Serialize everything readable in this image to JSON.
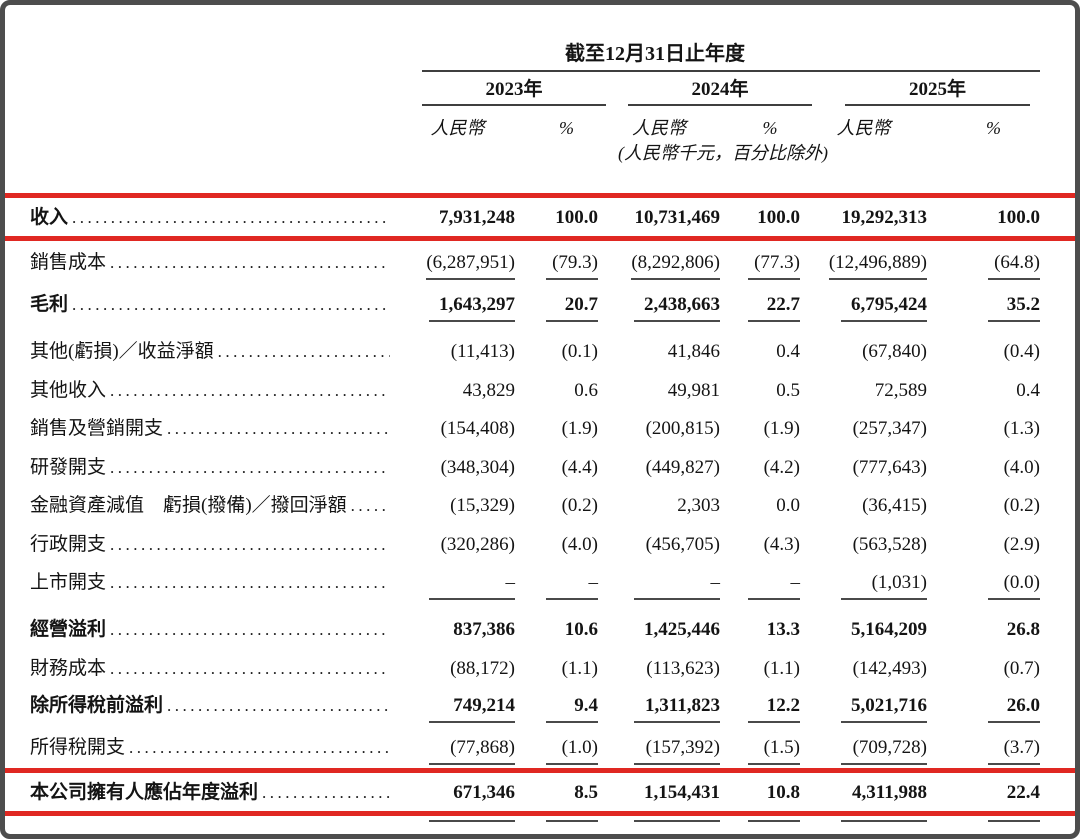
{
  "table": {
    "period_header": "截至12月31日止年度",
    "unit_note": "(人民幣千元，百分比除外)",
    "years": [
      "2023年",
      "2024年",
      "2025年"
    ],
    "col_headers": {
      "currency": "人民幣",
      "percent": "%"
    },
    "colors": {
      "highlight": "#e02822",
      "rule": "#3f3f3f",
      "page_border": "#4d4d4d",
      "ink": "#141414"
    },
    "rows": [
      {
        "key": "revenue",
        "label": "收入",
        "emphasis": true,
        "highlight": true,
        "values": [
          "7,931,248",
          "100.0",
          "10,731,469",
          "100.0",
          "19,292,313",
          "100.0"
        ]
      },
      {
        "key": "cost-of-sales",
        "label": "銷售成本",
        "rule_below": true,
        "values": [
          "(6,287,951)",
          "(79.3)",
          "(8,292,806)",
          "(77.3)",
          "(12,496,889)",
          "(64.8)"
        ]
      },
      {
        "key": "gross-profit",
        "label": "毛利",
        "emphasis": true,
        "rule_below": true,
        "values": [
          "1,643,297",
          "20.7",
          "2,438,663",
          "22.7",
          "6,795,424",
          "35.2"
        ]
      },
      {
        "key": "other-losses-gains-net",
        "label": "其他(虧損)／收益淨額",
        "values": [
          "(11,413)",
          "(0.1)",
          "41,846",
          "0.4",
          "(67,840)",
          "(0.4)"
        ]
      },
      {
        "key": "other-income",
        "label": "其他收入",
        "values": [
          "43,829",
          "0.6",
          "49,981",
          "0.5",
          "72,589",
          "0.4"
        ]
      },
      {
        "key": "selling-marketing-expenses",
        "label": "銷售及營銷開支",
        "values": [
          "(154,408)",
          "(1.9)",
          "(200,815)",
          "(1.9)",
          "(257,347)",
          "(1.3)"
        ]
      },
      {
        "key": "rd-expenses",
        "label": "研發開支",
        "values": [
          "(348,304)",
          "(4.4)",
          "(449,827)",
          "(4.2)",
          "(777,643)",
          "(4.0)"
        ]
      },
      {
        "key": "impairment-financial-assets",
        "label": "金融資產減值　虧損(撥備)／撥回淨額",
        "values": [
          "(15,329)",
          "(0.2)",
          "2,303",
          "0.0",
          "(36,415)",
          "(0.2)"
        ]
      },
      {
        "key": "administrative-expenses",
        "label": "行政開支",
        "values": [
          "(320,286)",
          "(4.0)",
          "(456,705)",
          "(4.3)",
          "(563,528)",
          "(2.9)"
        ]
      },
      {
        "key": "listing-expenses",
        "label": "上市開支",
        "rule_below": true,
        "values": [
          "–",
          "–",
          "–",
          "–",
          "(1,031)",
          "(0.0)"
        ]
      },
      {
        "key": "operating-profit",
        "label": "經營溢利",
        "emphasis": true,
        "values": [
          "837,386",
          "10.6",
          "1,425,446",
          "13.3",
          "5,164,209",
          "26.8"
        ]
      },
      {
        "key": "finance-costs",
        "label": "財務成本",
        "values": [
          "(88,172)",
          "(1.1)",
          "(113,623)",
          "(1.1)",
          "(142,493)",
          "(0.7)"
        ]
      },
      {
        "key": "profit-before-income-tax",
        "label": "除所得稅前溢利",
        "emphasis": true,
        "rule_below": true,
        "values": [
          "749,214",
          "9.4",
          "1,311,823",
          "12.2",
          "5,021,716",
          "26.0"
        ]
      },
      {
        "key": "income-tax-expense",
        "label": "所得稅開支",
        "rule_below": true,
        "values": [
          "(77,868)",
          "(1.0)",
          "(157,392)",
          "(1.5)",
          "(709,728)",
          "(3.7)"
        ]
      },
      {
        "key": "profit-attributable-to-owners",
        "label": "本公司擁有人應佔年度溢利",
        "emphasis": true,
        "highlight": true,
        "double_rule_below": true,
        "values": [
          "671,346",
          "8.5",
          "1,154,431",
          "10.8",
          "4,311,988",
          "22.4"
        ]
      }
    ]
  }
}
